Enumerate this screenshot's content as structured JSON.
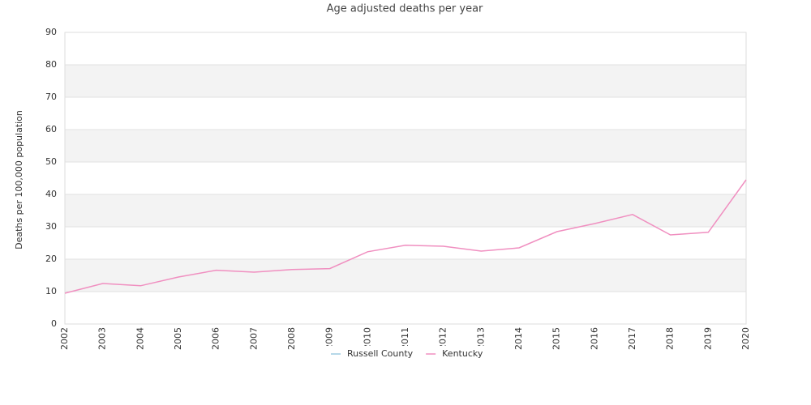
{
  "chart_data": {
    "type": "line",
    "title": "Age adjusted deaths per year",
    "y_label": "Deaths per 100,000 population",
    "categories": [
      "2002",
      "2003",
      "2004",
      "2005",
      "2006",
      "2007",
      "2008",
      "2009",
      "2010",
      "2011",
      "2012",
      "2013",
      "2014",
      "2015",
      "2016",
      "2017",
      "2018",
      "2019",
      "2020"
    ],
    "series": [
      {
        "name": "Russell County",
        "color": "#9ecae1",
        "values": [
          null,
          null,
          null,
          null,
          null,
          null,
          null,
          null,
          null,
          null,
          null,
          null,
          null,
          null,
          null,
          null,
          null,
          null,
          null
        ]
      },
      {
        "name": "Kentucky",
        "color": "#f08fc0",
        "values": [
          9.5,
          12.5,
          11.8,
          14.5,
          16.6,
          16.0,
          16.8,
          17.1,
          22.3,
          24.3,
          24.0,
          22.5,
          23.5,
          28.5,
          31.0,
          33.8,
          27.5,
          28.3,
          44.5
        ]
      }
    ],
    "ylim": [
      0,
      90
    ],
    "yticks": [
      0,
      10,
      20,
      30,
      40,
      50,
      60,
      70,
      80,
      90
    ],
    "grid": true,
    "banded": true,
    "legend": "bottom"
  }
}
